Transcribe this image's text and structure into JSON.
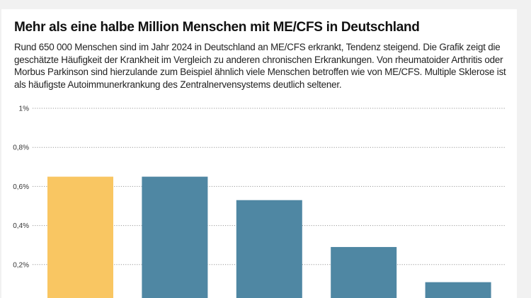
{
  "chart_data": {
    "type": "bar",
    "title": "Mehr als eine halbe Million Menschen mit ME/CFS in Deutschland",
    "subtitle": "Rund 650 000 Menschen sind im Jahr 2024 in Deutschland an ME/CFS erkrankt, Tendenz steigend. Die Grafik zeigt die geschätzte Häufigkeit der Krankheit im Vergleich zu anderen chronischen Erkrankungen. Von rheumatoider Arthritis oder Morbus Parkinson sind hierzulande zum Beispiel ähnlich viele Menschen betroffen wie von ME/CFS. Multiple Sklerose ist als häufigste Autoimmunerkrankung des Zentralnervensystems deutlich seltener.",
    "ylabel": "",
    "xlabel": "",
    "ylim": [
      0,
      1
    ],
    "yticks": [
      0.2,
      0.4,
      0.6,
      0.8,
      1.0
    ],
    "ytick_labels": [
      "0,2%",
      "0,4%",
      "0,6%",
      "0,8%",
      "1%"
    ],
    "grid": true,
    "values": [
      0.65,
      0.65,
      0.53,
      0.29,
      0.11
    ],
    "colors": [
      "#f9c662",
      "#4f87a3",
      "#4f87a3",
      "#4f87a3",
      "#4f87a3"
    ]
  }
}
